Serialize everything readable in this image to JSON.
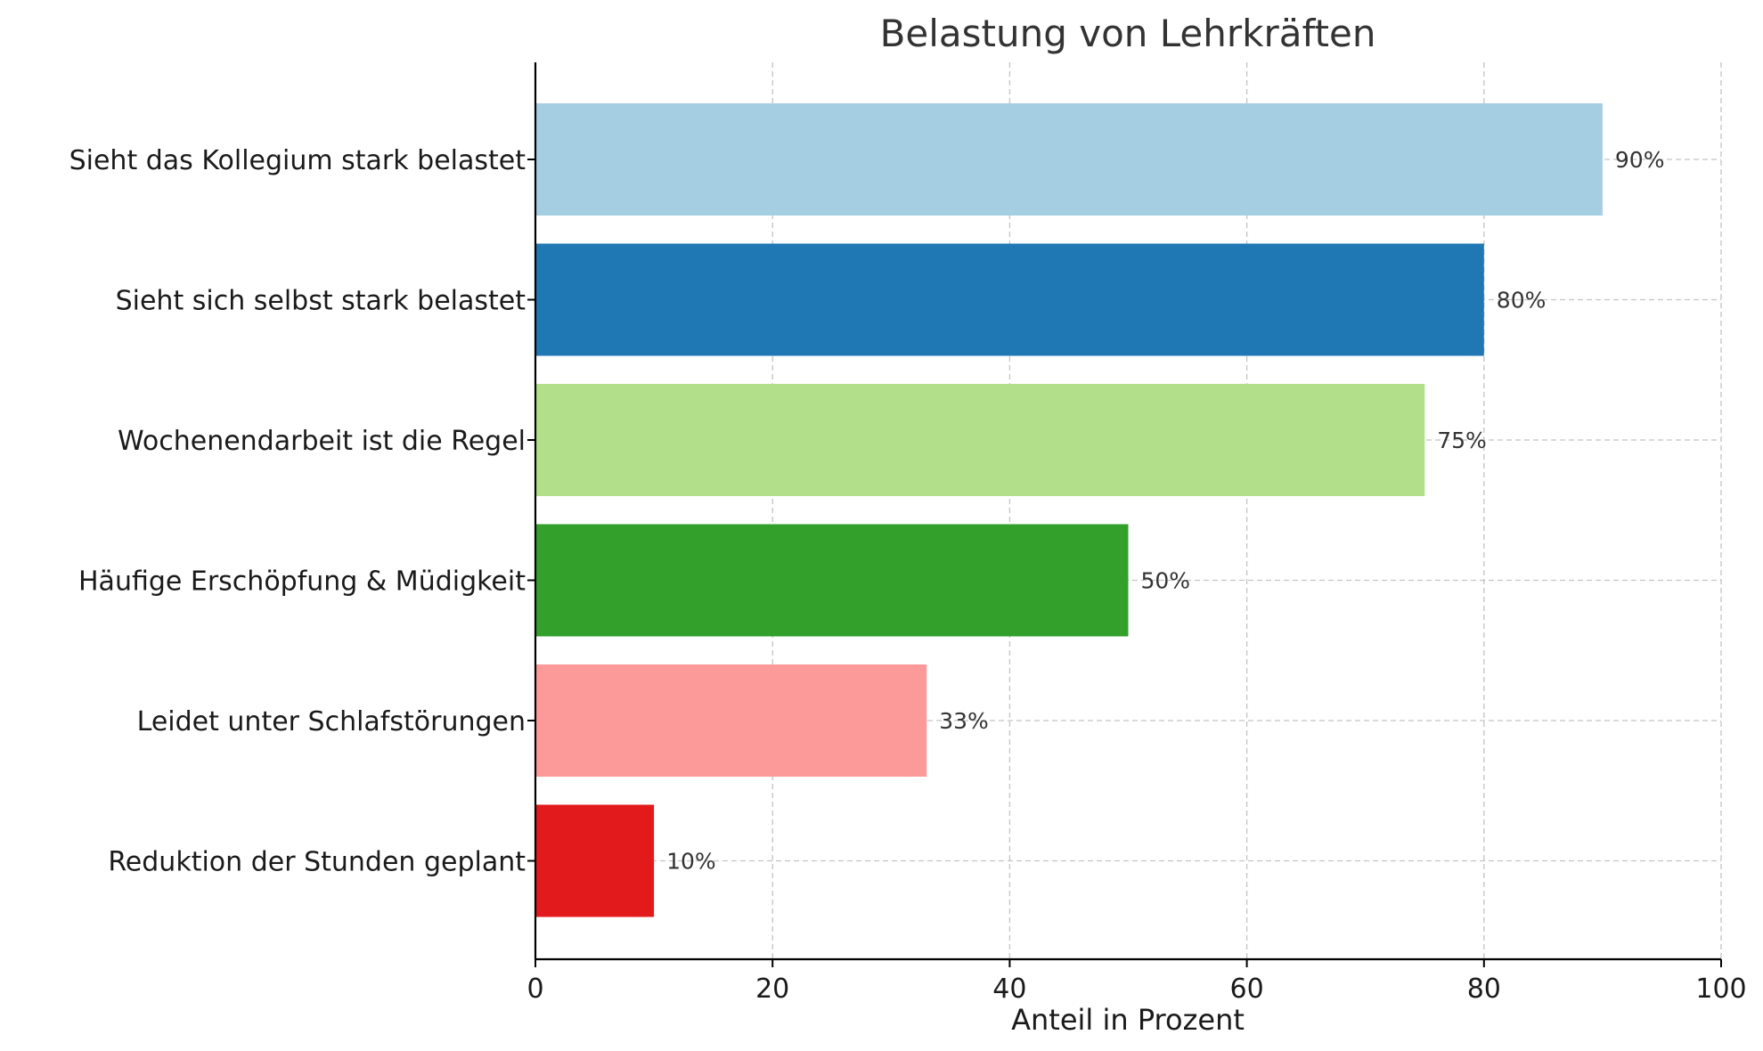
{
  "chart_data": {
    "type": "bar",
    "orientation": "horizontal",
    "title": "Belastung von Lehrkräften",
    "xlabel": "Anteil in Prozent",
    "ylabel": "",
    "xlim": [
      0,
      100
    ],
    "xticks": [
      0,
      20,
      40,
      60,
      80,
      100
    ],
    "grid": true,
    "categories": [
      "Sieht das Kollegium stark belastet",
      "Sieht sich selbst stark belastet",
      "Wochenendarbeit ist die Regel",
      "Häufige Erschöpfung & Müdigkeit",
      "Leidet unter Schlafstörungen",
      "Reduktion der Stunden geplant"
    ],
    "values": [
      90,
      80,
      75,
      50,
      33,
      10
    ],
    "value_labels": [
      "90%",
      "80%",
      "75%",
      "50%",
      "33%",
      "10%"
    ],
    "colors": [
      "#a6cee3",
      "#1f78b4",
      "#b2df8a",
      "#33a02c",
      "#fb9a99",
      "#e31a1c"
    ]
  }
}
